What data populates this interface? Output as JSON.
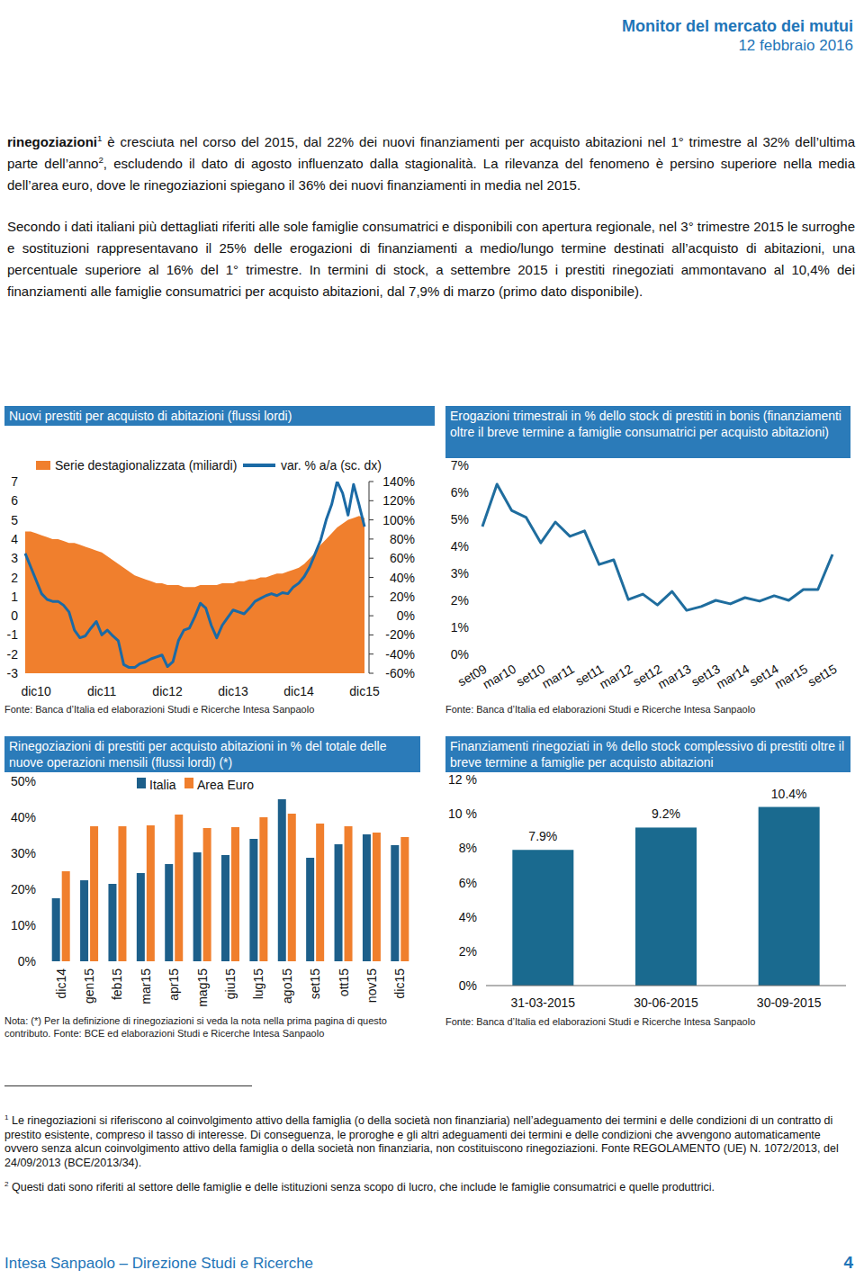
{
  "header": {
    "title": "Monitor del mercato dei mutui",
    "date": "12 febbraio 2016"
  },
  "body": {
    "paragraphs": [
      [
        "rinegoziazioni",
        "1",
        " è cresciuta nel corso del 2015, dal 22% dei nuovi finanziamenti per acquisto abitazioni nel 1° trimestre al 32% dell’ultima parte dell’anno",
        "2",
        ", escludendo il dato di agosto influenzato dalla stagionalità. La rilevanza del fenomeno è persino superiore nella media dell’area euro, dove le rinegoziazioni spiegano il 36% dei nuovi finanziamenti in media nel 2015."
      ],
      [
        "Secondo i dati italiani più dettagliati riferiti alle sole famiglie consumatrici e disponibili con apertura regionale, nel 3° trimestre 2015 le surroghe e sostituzioni rappresentavano il 25% delle erogazioni di finanziamenti a medio/lungo termine destinati all’acquisto di abitazioni, una percentuale superiore al 16% del 1° trimestre. In termini di stock, a settembre 2015 i prestiti rinegoziati ammontavano al 10,4% dei finanziamenti alle famiglie consumatrici per acquisto abitazioni, dal 7,9% di marzo (primo dato disponibile)."
      ]
    ]
  },
  "chart_data": [
    {
      "type": "area",
      "title": "Nuovi prestiti per acquisto di abitazioni (flussi lordi)",
      "categories": [
        null,
        null,
        "dic10",
        null,
        null,
        null,
        null,
        null,
        null,
        null,
        null,
        null,
        null,
        null,
        "dic11",
        null,
        null,
        null,
        null,
        null,
        null,
        null,
        null,
        null,
        null,
        null,
        "dic12",
        null,
        null,
        null,
        null,
        null,
        null,
        null,
        null,
        null,
        null,
        null,
        "dic13",
        null,
        null,
        null,
        null,
        null,
        null,
        null,
        null,
        null,
        null,
        null,
        "dic14",
        null,
        null,
        null,
        null,
        null,
        null,
        null,
        null,
        null,
        null,
        null,
        "dic15"
      ],
      "series": [
        {
          "name": "Serie destagionalizzata (miliardi)",
          "type": "area",
          "color": "#f07f2d",
          "values": [
            4.4,
            4.4,
            4.3,
            4.2,
            4.1,
            4.0,
            4.0,
            3.9,
            3.8,
            3.8,
            3.7,
            3.6,
            3.5,
            3.4,
            3.3,
            3.1,
            2.9,
            2.7,
            2.5,
            2.3,
            2.1,
            2.0,
            1.9,
            1.8,
            1.7,
            1.7,
            1.6,
            1.6,
            1.6,
            1.5,
            1.5,
            1.5,
            1.6,
            1.6,
            1.6,
            1.6,
            1.7,
            1.7,
            1.7,
            1.8,
            1.8,
            1.9,
            1.9,
            2.0,
            2.0,
            2.1,
            2.2,
            2.2,
            2.3,
            2.4,
            2.5,
            2.7,
            3.0,
            3.3,
            3.7,
            4.0,
            4.3,
            4.6,
            4.8,
            5.0,
            5.1,
            5.2,
            5.1
          ]
        },
        {
          "name": "var. % a/a (sc. dx)",
          "type": "line",
          "color": "#1b6aa5",
          "axis": "y2",
          "values": [
            65,
            51,
            37,
            23,
            17,
            15,
            15,
            11,
            4,
            -15,
            -23,
            -21,
            -13,
            -6,
            -20,
            -15,
            -21,
            -26,
            -51,
            -54,
            -54,
            -50,
            -48,
            -45,
            -43,
            -41,
            -53,
            -48,
            -26,
            -15,
            -13,
            -1,
            13,
            8,
            -10,
            -23,
            -10,
            -2,
            6,
            4,
            2,
            8,
            15,
            18,
            21,
            23,
            21,
            24,
            23,
            30,
            34,
            41,
            51,
            65,
            79,
            100,
            116,
            140,
            128,
            105,
            137,
            116,
            93
          ]
        }
      ],
      "ylim": [
        -3,
        7
      ],
      "yticks": [
        -3,
        -2,
        -1,
        0,
        1,
        2,
        3,
        4,
        5,
        6,
        7
      ],
      "y2lim": [
        -60,
        140
      ],
      "y2ticks": [
        {
          "value": -60,
          "label": "-60%"
        },
        {
          "value": -40,
          "label": "-40%"
        },
        {
          "value": -20,
          "label": "-20%"
        },
        {
          "value": 0,
          "label": "0%"
        },
        {
          "value": 20,
          "label": "20%"
        },
        {
          "value": 40,
          "label": "40%"
        },
        {
          "value": 60,
          "label": "60%"
        },
        {
          "value": 80,
          "label": "80%"
        },
        {
          "value": 100,
          "label": "100%"
        },
        {
          "value": 120,
          "label": "120%"
        },
        {
          "value": 140,
          "label": "140%"
        }
      ],
      "legend": "top",
      "source": "Fonte: Banca d’Italia ed elaborazioni Studi e Ricerche Intesa Sanpaolo"
    },
    {
      "type": "line",
      "title": "Erogazioni trimestrali in % dello stock di prestiti in bonis (finanziamenti oltre il breve termine a famiglie consumatrici per acquisto abitazioni)",
      "categories": [
        "set09",
        null,
        "mar10",
        null,
        "set10",
        null,
        "mar11",
        null,
        "set11",
        null,
        "mar12",
        null,
        "set12",
        null,
        "mar13",
        null,
        "set13",
        null,
        "mar14",
        null,
        "set14",
        null,
        "mar15",
        null,
        "set15"
      ],
      "values": [
        4.73,
        6.3,
        5.33,
        5.07,
        4.13,
        4.9,
        4.37,
        4.57,
        3.33,
        3.5,
        2.03,
        2.23,
        1.83,
        2.33,
        1.63,
        1.77,
        2.0,
        1.87,
        2.1,
        1.97,
        2.17,
        2.0,
        2.4,
        2.4,
        3.7
      ],
      "color": "#1f6d9e",
      "ylim": [
        0,
        7
      ],
      "yticks": [
        {
          "value": 0,
          "label": "0%"
        },
        {
          "value": 1,
          "label": "1%"
        },
        {
          "value": 2,
          "label": "2%"
        },
        {
          "value": 3,
          "label": "3%"
        },
        {
          "value": 4,
          "label": "4%"
        },
        {
          "value": 5,
          "label": "5%"
        },
        {
          "value": 6,
          "label": "6%"
        },
        {
          "value": 7,
          "label": "7%"
        }
      ],
      "source": "Fonte: Banca d’Italia ed elaborazioni Studi e Ricerche Intesa Sanpaolo"
    },
    {
      "type": "bar",
      "title": "Rinegoziazioni di prestiti per acquisto abitazioni in % del totale delle nuove operazioni mensili (flussi lordi) (*)",
      "categories": [
        "dic14",
        "gen15",
        "feb15",
        "mar15",
        "apr15",
        "mag15",
        "giu15",
        "lug15",
        "ago15",
        "set15",
        "ott15",
        "nov15",
        "dic15"
      ],
      "series": [
        {
          "name": "Italia",
          "color": "#1d5f8a",
          "values": [
            17.5,
            22.5,
            21.5,
            24.5,
            27,
            30.25,
            29.5,
            34,
            45,
            28.75,
            32.5,
            35.25,
            32.25
          ]
        },
        {
          "name": "Area Euro",
          "color": "#f07f2d",
          "values": [
            25,
            37.5,
            37.5,
            37.75,
            40.75,
            37,
            37.25,
            40,
            41,
            38.25,
            37.5,
            35.75,
            34.5
          ]
        }
      ],
      "ylim": [
        0,
        50
      ],
      "yticks": [
        {
          "value": 0,
          "label": "0%"
        },
        {
          "value": 10,
          "label": "10%"
        },
        {
          "value": 20,
          "label": "20%"
        },
        {
          "value": 30,
          "label": "30%"
        },
        {
          "value": 40,
          "label": "40%"
        },
        {
          "value": 50,
          "label": "50%"
        }
      ],
      "legend": "top",
      "source": "Nota: (*) Per la definizione di rinegoziazioni si veda la nota nella prima pagina di questo contributo. Fonte: BCE ed elaborazioni Studi e Ricerche Intesa Sanpaolo"
    },
    {
      "type": "bar",
      "title": "Finanziamenti rinegoziati in % dello stock complessivo di prestiti oltre il breve termine a famiglie per acquisto abitazioni",
      "categories": [
        "31-03-2015",
        "30-06-2015",
        "30-09-2015"
      ],
      "values": [
        7.9,
        9.2,
        10.4
      ],
      "value_labels": [
        "7.9%",
        "9.2%",
        "10.4%"
      ],
      "data_labels": true,
      "color": "#1a6a8f",
      "ylim": [
        0,
        12
      ],
      "yticks": [
        {
          "value": 0,
          "label": "0%"
        },
        {
          "value": 2,
          "label": "2%"
        },
        {
          "value": 4,
          "label": "4%"
        },
        {
          "value": 6,
          "label": "6%"
        },
        {
          "value": 8,
          "label": "8%"
        },
        {
          "value": 10,
          "label": "10 %"
        },
        {
          "value": 12,
          "label": "12 %"
        }
      ],
      "source": "Fonte: Banca d’Italia ed elaborazioni Studi e Ricerche Intesa Sanpaolo"
    }
  ],
  "footnotes": [
    {
      "mark": "1",
      "text": "Le rinegoziazioni si riferiscono al coinvolgimento attivo della famiglia (o della società non finanziaria) nell’adeguamento dei termini e delle condizioni di un contratto di prestito esistente, compreso il tasso di interesse. Di conseguenza, le proroghe e gli altri adeguamenti dei termini e delle condizioni che avvengono automaticamente ovvero senza alcun coinvolgimento attivo della famiglia o della società non finanziaria, non costituiscono rinegoziazioni. Fonte REGOLAMENTO (UE) N. 1072/2013, del 24/09/2013 (BCE/2013/34)."
    },
    {
      "mark": "2",
      "text": "Questi dati sono riferiti al settore delle famiglie e delle istituzioni senza scopo di lucro, che include le famiglie consumatrici e quelle produttrici."
    }
  ],
  "footer": {
    "publisher": "Intesa Sanpaolo – Direzione Studi e Ricerche",
    "page": "4"
  }
}
